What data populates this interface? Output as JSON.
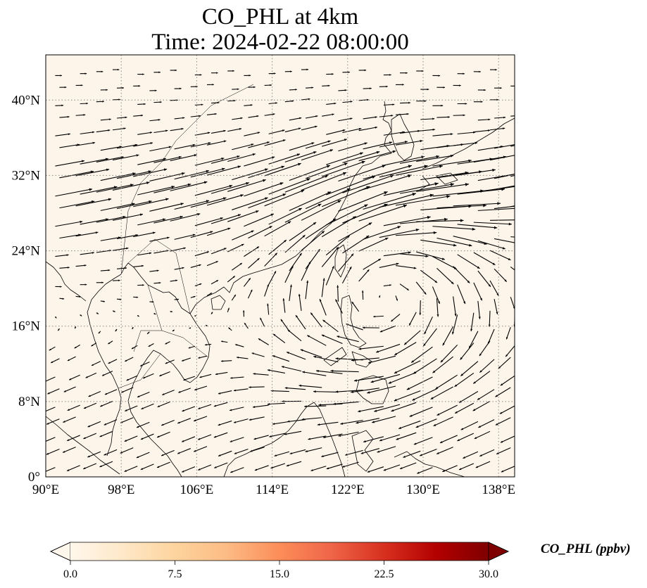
{
  "title": {
    "line1": "CO_PHL at 4km",
    "line2": "Time: 2024-02-22 08:00:00"
  },
  "map": {
    "projection": "PlateCarree",
    "lon_range": [
      90,
      139.7
    ],
    "lat_range": [
      0,
      44.8
    ],
    "background_color": "#fdf5ea",
    "gridlines": "dotted",
    "lon_ticks": [
      {
        "value": 90,
        "label": "90°E"
      },
      {
        "value": 98,
        "label": "98°E"
      },
      {
        "value": 106,
        "label": "106°E"
      },
      {
        "value": 114,
        "label": "114°E"
      },
      {
        "value": 122,
        "label": "122°E"
      },
      {
        "value": 130,
        "label": "130°E"
      },
      {
        "value": 138,
        "label": "138°E"
      }
    ],
    "lat_ticks": [
      {
        "value": 0,
        "label": "0°"
      },
      {
        "value": 8,
        "label": "8°N"
      },
      {
        "value": 16,
        "label": "16°N"
      },
      {
        "value": 24,
        "label": "24°N"
      },
      {
        "value": 32,
        "label": "32°N"
      },
      {
        "value": 40,
        "label": "40°N"
      }
    ],
    "wind_field": "quiver: strong westerly jet 24°N–36°N, anticyclonic circulation centred near 20°N 126°E, easterly trades south of 16°N"
  },
  "colorbar": {
    "label": "CO_PHL (ppbv)",
    "min": 0.0,
    "max": 30.0,
    "extend": "both",
    "colormap": "OrRd",
    "colors": [
      "#fff7ec",
      "#fee8c8",
      "#fdd49e",
      "#fdbb84",
      "#fc8d59",
      "#ef6548",
      "#d7301f",
      "#b30000",
      "#7f0000"
    ],
    "ticks": [
      "0.0",
      "7.5",
      "15.0",
      "22.5",
      "30.0"
    ]
  }
}
